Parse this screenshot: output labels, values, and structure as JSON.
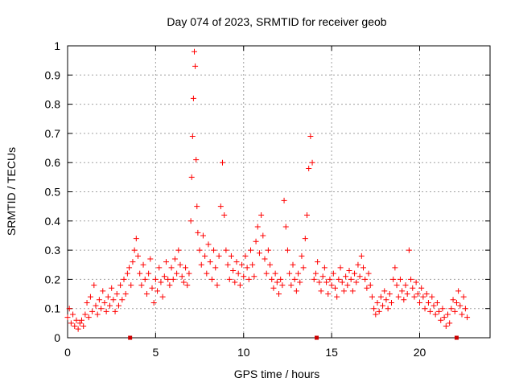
{
  "chart_data": {
    "type": "scatter",
    "title": "Day 074 of 2023, SRMTID for receiver geob",
    "xlabel": "GPS time / hours",
    "ylabel": "SRMTID / TECUs",
    "xlim": [
      0,
      24
    ],
    "ylim": [
      0,
      1
    ],
    "x_ticks": [
      "0",
      "5",
      "10",
      "15",
      "20"
    ],
    "y_ticks": [
      "0",
      "0.1",
      "0.2",
      "0.3",
      "0.4",
      "0.5",
      "0.6",
      "0.7",
      "0.8",
      "0.9",
      "1"
    ],
    "grid": true,
    "marker": "plus",
    "series_color": "#ff0000",
    "gap_marker_color": "#cc0000",
    "gap_markers_x": [
      3.55,
      14.15,
      22.1
    ],
    "series": [
      {
        "name": "SRMTID",
        "points": [
          [
            0.0,
            0.07
          ],
          [
            0.1,
            0.1
          ],
          [
            0.2,
            0.05
          ],
          [
            0.3,
            0.08
          ],
          [
            0.4,
            0.04
          ],
          [
            0.5,
            0.06
          ],
          [
            0.6,
            0.03
          ],
          [
            0.7,
            0.05
          ],
          [
            0.8,
            0.06
          ],
          [
            0.9,
            0.04
          ],
          [
            1.0,
            0.08
          ],
          [
            1.1,
            0.12
          ],
          [
            1.2,
            0.07
          ],
          [
            1.3,
            0.14
          ],
          [
            1.4,
            0.09
          ],
          [
            1.5,
            0.18
          ],
          [
            1.6,
            0.11
          ],
          [
            1.7,
            0.08
          ],
          [
            1.8,
            0.13
          ],
          [
            1.9,
            0.1
          ],
          [
            2.0,
            0.16
          ],
          [
            2.1,
            0.12
          ],
          [
            2.2,
            0.09
          ],
          [
            2.3,
            0.14
          ],
          [
            2.4,
            0.11
          ],
          [
            2.5,
            0.17
          ],
          [
            2.6,
            0.13
          ],
          [
            2.7,
            0.09
          ],
          [
            2.8,
            0.15
          ],
          [
            2.9,
            0.11
          ],
          [
            3.0,
            0.18
          ],
          [
            3.1,
            0.13
          ],
          [
            3.2,
            0.2
          ],
          [
            3.3,
            0.15
          ],
          [
            3.4,
            0.22
          ],
          [
            3.5,
            0.24
          ],
          [
            3.6,
            0.18
          ],
          [
            3.7,
            0.26
          ],
          [
            3.8,
            0.3
          ],
          [
            3.9,
            0.34
          ],
          [
            4.0,
            0.28
          ],
          [
            4.1,
            0.22
          ],
          [
            4.2,
            0.18
          ],
          [
            4.3,
            0.25
          ],
          [
            4.4,
            0.2
          ],
          [
            4.5,
            0.15
          ],
          [
            4.6,
            0.22
          ],
          [
            4.7,
            0.27
          ],
          [
            4.8,
            0.17
          ],
          [
            4.9,
            0.12
          ],
          [
            5.0,
            0.2
          ],
          [
            5.1,
            0.16
          ],
          [
            5.2,
            0.24
          ],
          [
            5.3,
            0.19
          ],
          [
            5.4,
            0.14
          ],
          [
            5.5,
            0.21
          ],
          [
            5.6,
            0.26
          ],
          [
            5.7,
            0.2
          ],
          [
            5.8,
            0.18
          ],
          [
            5.9,
            0.24
          ],
          [
            6.0,
            0.2
          ],
          [
            6.1,
            0.27
          ],
          [
            6.2,
            0.22
          ],
          [
            6.3,
            0.3
          ],
          [
            6.4,
            0.25
          ],
          [
            6.5,
            0.21
          ],
          [
            6.6,
            0.19
          ],
          [
            6.7,
            0.24
          ],
          [
            6.8,
            0.18
          ],
          [
            6.9,
            0.22
          ],
          [
            7.0,
            0.4
          ],
          [
            7.05,
            0.55
          ],
          [
            7.1,
            0.69
          ],
          [
            7.15,
            0.82
          ],
          [
            7.2,
            0.98
          ],
          [
            7.25,
            0.93
          ],
          [
            7.3,
            0.61
          ],
          [
            7.35,
            0.45
          ],
          [
            7.4,
            0.36
          ],
          [
            7.5,
            0.3
          ],
          [
            7.6,
            0.25
          ],
          [
            7.7,
            0.35
          ],
          [
            7.8,
            0.28
          ],
          [
            7.9,
            0.22
          ],
          [
            8.0,
            0.32
          ],
          [
            8.1,
            0.26
          ],
          [
            8.2,
            0.2
          ],
          [
            8.3,
            0.3
          ],
          [
            8.4,
            0.24
          ],
          [
            8.5,
            0.18
          ],
          [
            8.6,
            0.28
          ],
          [
            8.7,
            0.45
          ],
          [
            8.8,
            0.6
          ],
          [
            8.9,
            0.42
          ],
          [
            9.0,
            0.3
          ],
          [
            9.1,
            0.25
          ],
          [
            9.2,
            0.2
          ],
          [
            9.3,
            0.28
          ],
          [
            9.4,
            0.23
          ],
          [
            9.5,
            0.19
          ],
          [
            9.6,
            0.26
          ],
          [
            9.7,
            0.22
          ],
          [
            9.8,
            0.18
          ],
          [
            9.9,
            0.25
          ],
          [
            10.0,
            0.21
          ],
          [
            10.1,
            0.28
          ],
          [
            10.2,
            0.24
          ],
          [
            10.3,
            0.2
          ],
          [
            10.4,
            0.3
          ],
          [
            10.5,
            0.25
          ],
          [
            10.6,
            0.21
          ],
          [
            10.7,
            0.33
          ],
          [
            10.8,
            0.38
          ],
          [
            10.9,
            0.29
          ],
          [
            11.0,
            0.42
          ],
          [
            11.1,
            0.35
          ],
          [
            11.2,
            0.27
          ],
          [
            11.3,
            0.22
          ],
          [
            11.4,
            0.3
          ],
          [
            11.5,
            0.25
          ],
          [
            11.6,
            0.2
          ],
          [
            11.7,
            0.17
          ],
          [
            11.8,
            0.22
          ],
          [
            11.9,
            0.19
          ],
          [
            12.0,
            0.15
          ],
          [
            12.1,
            0.2
          ],
          [
            12.2,
            0.18
          ],
          [
            12.3,
            0.47
          ],
          [
            12.4,
            0.38
          ],
          [
            12.5,
            0.3
          ],
          [
            12.6,
            0.22
          ],
          [
            12.7,
            0.18
          ],
          [
            12.8,
            0.25
          ],
          [
            12.9,
            0.2
          ],
          [
            13.0,
            0.16
          ],
          [
            13.1,
            0.22
          ],
          [
            13.2,
            0.19
          ],
          [
            13.3,
            0.28
          ],
          [
            13.4,
            0.24
          ],
          [
            13.5,
            0.34
          ],
          [
            13.6,
            0.42
          ],
          [
            13.7,
            0.58
          ],
          [
            13.8,
            0.69
          ],
          [
            13.9,
            0.6
          ],
          [
            14.0,
            0.2
          ],
          [
            14.1,
            0.22
          ],
          [
            14.2,
            0.26
          ],
          [
            14.3,
            0.19
          ],
          [
            14.4,
            0.16
          ],
          [
            14.5,
            0.21
          ],
          [
            14.6,
            0.24
          ],
          [
            14.7,
            0.19
          ],
          [
            14.8,
            0.15
          ],
          [
            14.9,
            0.2
          ],
          [
            15.0,
            0.18
          ],
          [
            15.1,
            0.22
          ],
          [
            15.2,
            0.17
          ],
          [
            15.3,
            0.14
          ],
          [
            15.4,
            0.2
          ],
          [
            15.5,
            0.24
          ],
          [
            15.6,
            0.19
          ],
          [
            15.7,
            0.16
          ],
          [
            15.8,
            0.21
          ],
          [
            15.9,
            0.18
          ],
          [
            16.0,
            0.23
          ],
          [
            16.1,
            0.2
          ],
          [
            16.2,
            0.16
          ],
          [
            16.3,
            0.22
          ],
          [
            16.4,
            0.19
          ],
          [
            16.5,
            0.25
          ],
          [
            16.6,
            0.21
          ],
          [
            16.7,
            0.28
          ],
          [
            16.8,
            0.24
          ],
          [
            16.9,
            0.2
          ],
          [
            17.0,
            0.17
          ],
          [
            17.1,
            0.22
          ],
          [
            17.2,
            0.18
          ],
          [
            17.3,
            0.14
          ],
          [
            17.4,
            0.1
          ],
          [
            17.5,
            0.08
          ],
          [
            17.6,
            0.12
          ],
          [
            17.7,
            0.09
          ],
          [
            17.8,
            0.14
          ],
          [
            17.9,
            0.11
          ],
          [
            18.0,
            0.16
          ],
          [
            18.1,
            0.13
          ],
          [
            18.2,
            0.1
          ],
          [
            18.3,
            0.15
          ],
          [
            18.4,
            0.12
          ],
          [
            18.5,
            0.2
          ],
          [
            18.6,
            0.24
          ],
          [
            18.7,
            0.18
          ],
          [
            18.8,
            0.14
          ],
          [
            18.9,
            0.2
          ],
          [
            19.0,
            0.16
          ],
          [
            19.1,
            0.13
          ],
          [
            19.2,
            0.18
          ],
          [
            19.3,
            0.15
          ],
          [
            19.4,
            0.3
          ],
          [
            19.5,
            0.2
          ],
          [
            19.6,
            0.17
          ],
          [
            19.7,
            0.14
          ],
          [
            19.8,
            0.19
          ],
          [
            19.9,
            0.15
          ],
          [
            20.0,
            0.12
          ],
          [
            20.1,
            0.17
          ],
          [
            20.2,
            0.14
          ],
          [
            20.3,
            0.1
          ],
          [
            20.4,
            0.15
          ],
          [
            20.5,
            0.12
          ],
          [
            20.6,
            0.09
          ],
          [
            20.7,
            0.14
          ],
          [
            20.8,
            0.11
          ],
          [
            20.9,
            0.08
          ],
          [
            21.0,
            0.12
          ],
          [
            21.1,
            0.09
          ],
          [
            21.2,
            0.06
          ],
          [
            21.3,
            0.1
          ],
          [
            21.4,
            0.07
          ],
          [
            21.5,
            0.04
          ],
          [
            21.6,
            0.08
          ],
          [
            21.7,
            0.05
          ],
          [
            21.8,
            0.1
          ],
          [
            21.9,
            0.13
          ],
          [
            22.0,
            0.09
          ],
          [
            22.1,
            0.12
          ],
          [
            22.2,
            0.16
          ],
          [
            22.3,
            0.11
          ],
          [
            22.4,
            0.08
          ],
          [
            22.5,
            0.14
          ],
          [
            22.6,
            0.1
          ],
          [
            22.7,
            0.07
          ]
        ]
      }
    ]
  }
}
